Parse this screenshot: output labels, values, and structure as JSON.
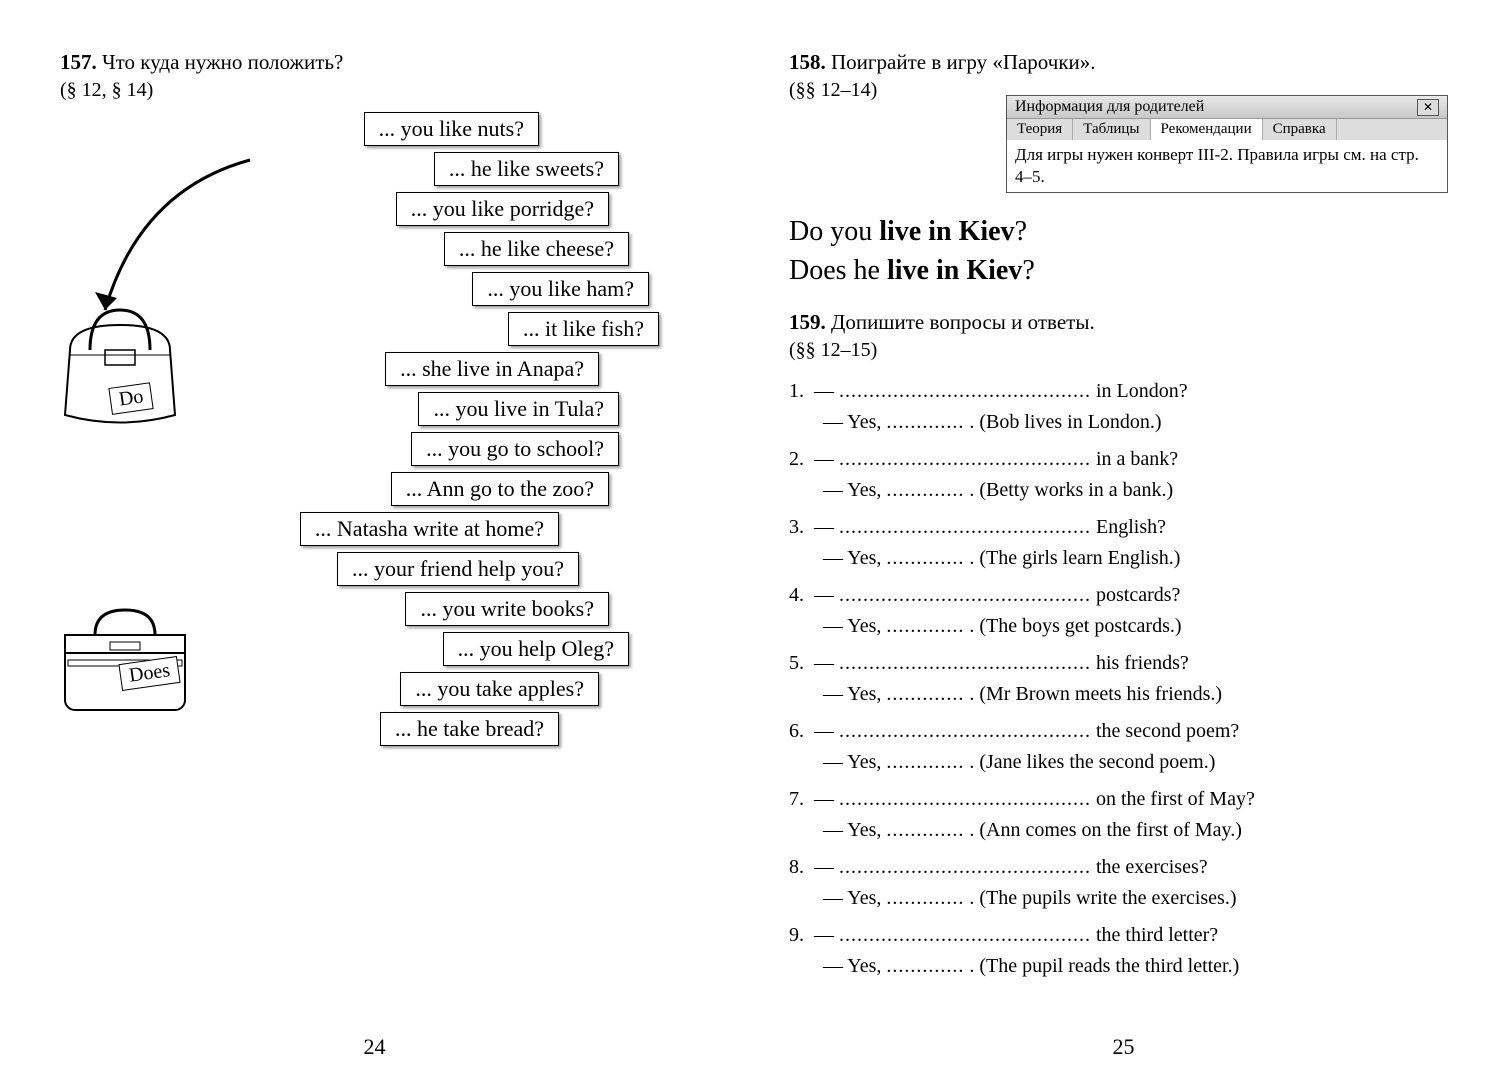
{
  "leftPage": {
    "exercise": {
      "num": "157.",
      "title": "Что куда нужно положить?",
      "ref": "(§ 12, § 14)"
    },
    "phrases": [
      "... you like nuts?",
      "... he like sweets?",
      "... you like porridge?",
      "... he like cheese?",
      "... you like ham?",
      "... it like fish?",
      "... she live in Anapa?",
      "... you live in Tula?",
      "... you go to school?",
      "... Ann go to the zoo?",
      "... Natasha write at home?",
      "... your friend help you?",
      "... you write books?",
      "... you help Oleg?",
      "... you take apples?",
      "... he take bread?"
    ],
    "phraseOffsets": [
      220,
      300,
      290,
      310,
      330,
      340,
      280,
      300,
      300,
      290,
      240,
      260,
      290,
      310,
      280,
      240
    ],
    "bags": {
      "do": "Do",
      "does": "Does"
    },
    "pageNum": "24"
  },
  "rightPage": {
    "ex158": {
      "num": "158.",
      "title": "Поиграйте в игру «Парочки».",
      "ref": "(§§ 12–14)"
    },
    "infoBox": {
      "title": "Информация для родителей",
      "tabs": [
        "Теория",
        "Таблицы",
        "Рекомендации",
        "Справка"
      ],
      "activeTab": 2,
      "body": "Для игры нужен конверт III-2. Правила игры см. на стр. 4–5."
    },
    "examples": [
      {
        "pre": "Do you ",
        "bold": "live in Kiev",
        "post": "?"
      },
      {
        "pre": "Does he ",
        "bold": "live in Kiev",
        "post": "?"
      }
    ],
    "ex159": {
      "num": "159.",
      "title": "Допишите вопросы и ответы.",
      "ref": "(§§ 12–15)"
    },
    "items": [
      {
        "n": "1.",
        "q": "in London?",
        "a": "(Bob lives in London.)"
      },
      {
        "n": "2.",
        "q": "in a bank?",
        "a": "(Betty works in a bank.)"
      },
      {
        "n": "3.",
        "q": "English?",
        "a": "(The girls learn English.)"
      },
      {
        "n": "4.",
        "q": "postcards?",
        "a": "(The boys get postcards.)"
      },
      {
        "n": "5.",
        "q": "his friends?",
        "a": "(Mr Brown meets his friends.)"
      },
      {
        "n": "6.",
        "q": "the second poem?",
        "a": "(Jane likes the second poem.)"
      },
      {
        "n": "7.",
        "q": "on the first of May?",
        "a": "(Ann comes on the first of May.)"
      },
      {
        "n": "8.",
        "q": "the exercises?",
        "a": "(The pupils write the exercises.)"
      },
      {
        "n": "9.",
        "q": "the third letter?",
        "a": "(The pupil reads the third letter.)"
      }
    ],
    "yesPrefix": "— Yes, ",
    "dashPrefix": "— ",
    "dotsLong": "..........................................",
    "dotsShort": ".............",
    "pageNum": "25"
  },
  "style": {
    "boxBorder": "#000000",
    "boxShadow": "rgba(0,0,0,0.4)",
    "background": "#ffffff",
    "fontSerif": "Georgia",
    "phraseFontSize": 22,
    "headerFontSize": 21,
    "exampleFontSize": 28,
    "listFontSize": 20
  }
}
